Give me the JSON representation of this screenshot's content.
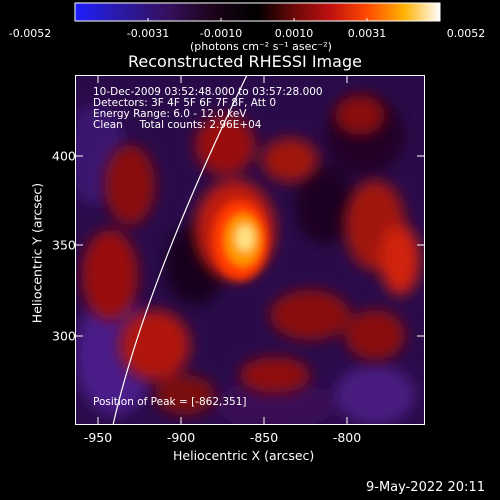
{
  "colorbar": {
    "ticks": [
      "-0.0052",
      "-0.0031",
      "-0.0010",
      "0.0010",
      "0.0031",
      "0.0052"
    ],
    "units": "(photons cm⁻² s⁻¹ asec⁻²)"
  },
  "title": "Reconstructed RHESSI Image",
  "info": {
    "time": "10-Dec-2009 03:52:48.000 to 03:57:28.000",
    "detectors": "Detectors: 3F 4F 5F 6F 7F 8F, Att 0",
    "energy": "Energy Range: 6.0 - 12.0 keV",
    "clean": "Clean     Total counts: 2.96E+04"
  },
  "peak": "Position of Peak = [-862,351]",
  "axes": {
    "xlabel": "Heliocentric X (arcsec)",
    "ylabel": "Heliocentric Y (arcsec)",
    "xticks": [
      "-950",
      "-900",
      "-850",
      "-800"
    ],
    "yticks": [
      "400",
      "350",
      "300"
    ]
  },
  "footer_date": "9-May-2022 20:11",
  "colors": {
    "background": "#000000",
    "frame": "#ffffff",
    "limb": "#ffffff"
  }
}
